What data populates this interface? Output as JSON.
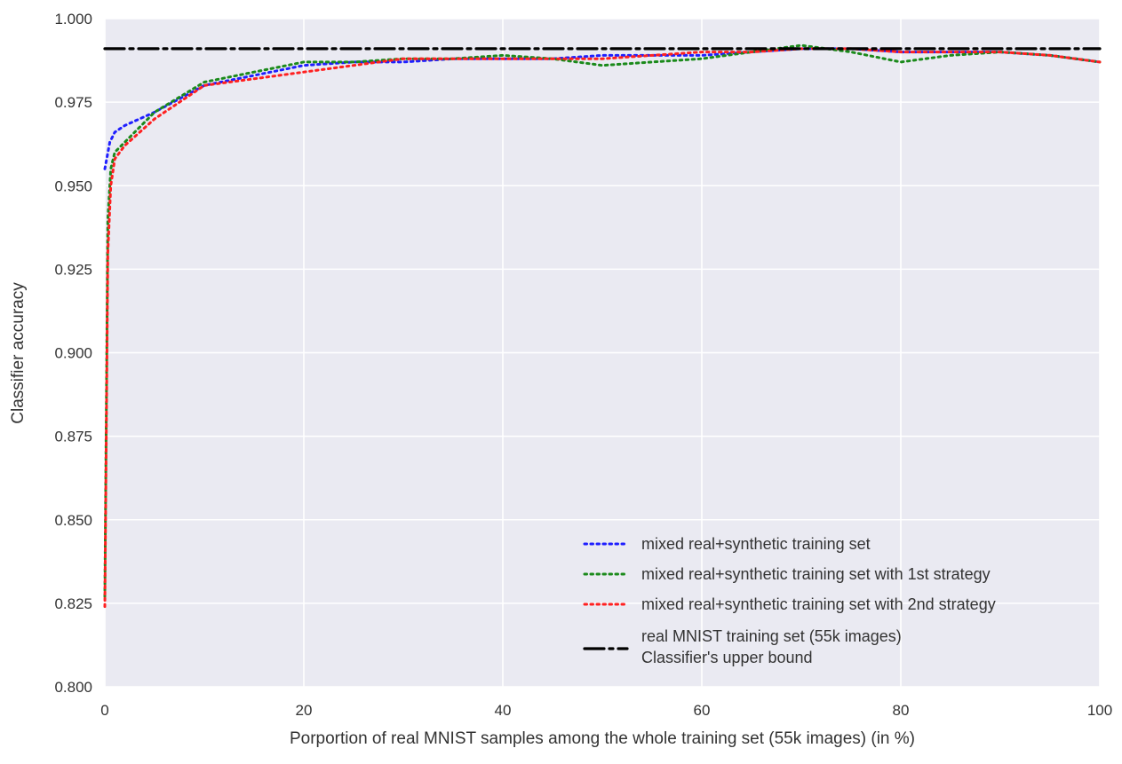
{
  "chart_data": {
    "type": "line",
    "title": "",
    "xlabel": "Porportion of real MNIST samples among the whole training set (55k images) (in %)",
    "ylabel": "Classifier accuracy",
    "xlim": [
      0,
      100
    ],
    "ylim": [
      0.8,
      1.0
    ],
    "xticks": [
      0,
      20,
      40,
      60,
      80,
      100
    ],
    "xtick_labels": [
      "0",
      "20",
      "40",
      "60",
      "80",
      "100"
    ],
    "yticks": [
      0.8,
      0.825,
      0.85,
      0.875,
      0.9,
      0.925,
      0.95,
      0.975,
      1.0
    ],
    "ytick_labels": [
      "0.800",
      "0.825",
      "0.850",
      "0.875",
      "0.900",
      "0.925",
      "0.950",
      "0.975",
      "1.000"
    ],
    "grid": true,
    "background": "#eaeaf2",
    "legend_position": "lower-right",
    "series": [
      {
        "name": "mixed real+synthetic training set",
        "color": "#1f1fff",
        "style": "dotted",
        "x": [
          0,
          0.5,
          1,
          2,
          5,
          10,
          15,
          20,
          25,
          30,
          35,
          40,
          45,
          50,
          55,
          60,
          65,
          70,
          75,
          80,
          85,
          90,
          95,
          100
        ],
        "y": [
          0.955,
          0.963,
          0.966,
          0.968,
          0.972,
          0.98,
          0.983,
          0.986,
          0.987,
          0.987,
          0.988,
          0.988,
          0.988,
          0.989,
          0.989,
          0.989,
          0.99,
          0.991,
          0.991,
          0.99,
          0.99,
          0.99,
          0.989,
          0.987
        ]
      },
      {
        "name": "mixed real+synthetic training set with 1st strategy",
        "color": "#1b8a1b",
        "style": "dotted",
        "x": [
          0,
          0.3,
          0.6,
          1,
          2,
          5,
          10,
          15,
          20,
          25,
          30,
          35,
          40,
          45,
          50,
          55,
          60,
          65,
          70,
          75,
          80,
          85,
          90,
          95,
          100
        ],
        "y": [
          0.827,
          0.94,
          0.955,
          0.96,
          0.963,
          0.972,
          0.981,
          0.984,
          0.987,
          0.987,
          0.988,
          0.988,
          0.989,
          0.988,
          0.986,
          0.987,
          0.988,
          0.99,
          0.992,
          0.99,
          0.987,
          0.989,
          0.99,
          0.989,
          0.987
        ]
      },
      {
        "name": "mixed real+synthetic training set with 2nd strategy",
        "color": "#ff2020",
        "style": "dotted",
        "x": [
          0,
          0.3,
          0.6,
          1,
          2,
          5,
          10,
          15,
          20,
          25,
          30,
          35,
          40,
          45,
          50,
          55,
          60,
          65,
          70,
          75,
          80,
          85,
          90,
          95,
          100
        ],
        "y": [
          0.824,
          0.93,
          0.95,
          0.958,
          0.962,
          0.97,
          0.98,
          0.982,
          0.984,
          0.986,
          0.988,
          0.988,
          0.988,
          0.988,
          0.988,
          0.989,
          0.99,
          0.99,
          0.991,
          0.991,
          0.99,
          0.99,
          0.99,
          0.989,
          0.987
        ]
      },
      {
        "name": "real MNIST training set (55k images)\n Classifier's upper bound",
        "name_lines": [
          "real MNIST training set (55k images)",
          " Classifier's upper bound"
        ],
        "color": "#000000",
        "style": "dashdot",
        "x": [
          0,
          100
        ],
        "y": [
          0.991,
          0.991
        ]
      }
    ]
  }
}
